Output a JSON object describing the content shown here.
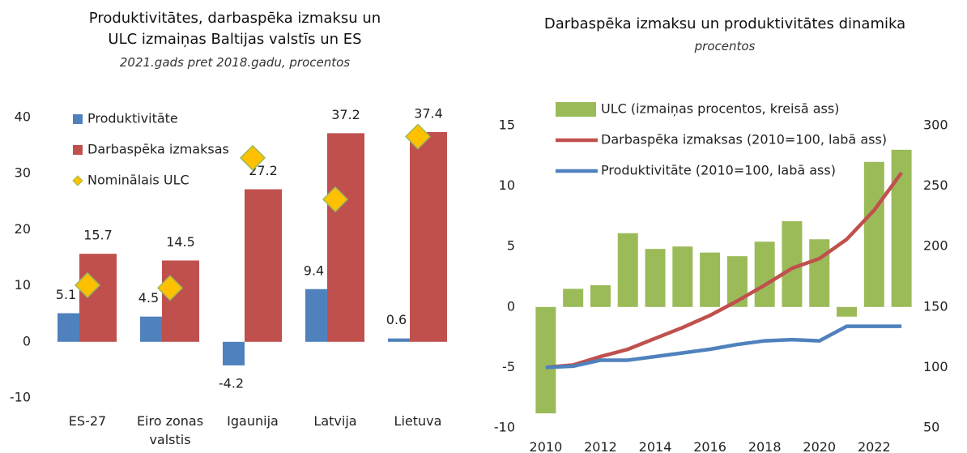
{
  "chart_data": [
    {
      "type": "bar",
      "title": "Produktivitātes, darbaspēka izmaksu un ULC izmaiņas Baltijas valstīs un ES",
      "subtitle": "2021.gads pret 2018.gadu, procentos",
      "categories": [
        "ES-27",
        "Eiro zonas valstis",
        "Igaunija",
        "Latvija",
        "Lietuva"
      ],
      "series": [
        {
          "name": "Produktivitāte",
          "color": "#4f81bd",
          "type": "bar",
          "values": [
            5.1,
            4.5,
            -4.2,
            9.4,
            0.6
          ]
        },
        {
          "name": "Darbaspēka izmaksas",
          "color": "#c0504d",
          "type": "bar",
          "values": [
            15.7,
            14.5,
            27.2,
            37.2,
            37.4
          ]
        },
        {
          "name": "Nominālais ULC",
          "color": "#ffc000",
          "type": "scatter",
          "values": [
            10.1,
            9.6,
            32.8,
            25.4,
            36.6
          ]
        }
      ],
      "ylim": [
        -10,
        40
      ],
      "yticks": [
        -10,
        0,
        10,
        20,
        30,
        40
      ],
      "legend": "upper left"
    },
    {
      "type": "bar",
      "title": "Darbaspēka izmaksu un produktivitātes dinamika",
      "subtitle": "procentos",
      "categories": [
        "2010",
        null,
        "2012",
        null,
        "2014",
        null,
        "2016",
        null,
        "2018",
        null,
        "2020",
        null,
        "2022",
        null
      ],
      "series": [
        {
          "name": "ULC (izmaiņas procentos, kreisā ass)",
          "color": "#9bbb59",
          "type": "bar",
          "values": [
            -8.8,
            1.5,
            1.8,
            6.1,
            4.8,
            5.0,
            4.5,
            4.2,
            5.4,
            7.1,
            5.6,
            -0.8,
            12.0,
            13.0
          ]
        },
        {
          "name": "Darbaspēka izmaksas (2010=100, labā ass)",
          "color": "#c0504d",
          "type": "line",
          "axis": "y2",
          "values": [
            100,
            102,
            109,
            115,
            124,
            133,
            143,
            155,
            168,
            182,
            190,
            206,
            230,
            261
          ]
        },
        {
          "name": "Produktivitāte (2010=100, labā ass)",
          "color": "#4f81bd",
          "type": "line",
          "axis": "y2",
          "values": [
            100,
            101,
            106,
            106,
            109,
            112,
            115,
            119,
            122,
            123,
            122,
            134,
            134,
            134
          ]
        }
      ],
      "ylim": [
        -10,
        15
      ],
      "yticks": [
        -10,
        -5,
        0,
        5,
        10,
        15
      ],
      "y2lim": [
        50,
        300
      ],
      "y2ticks": [
        50,
        100,
        150,
        200,
        250,
        300
      ],
      "legend": "upper left"
    }
  ]
}
